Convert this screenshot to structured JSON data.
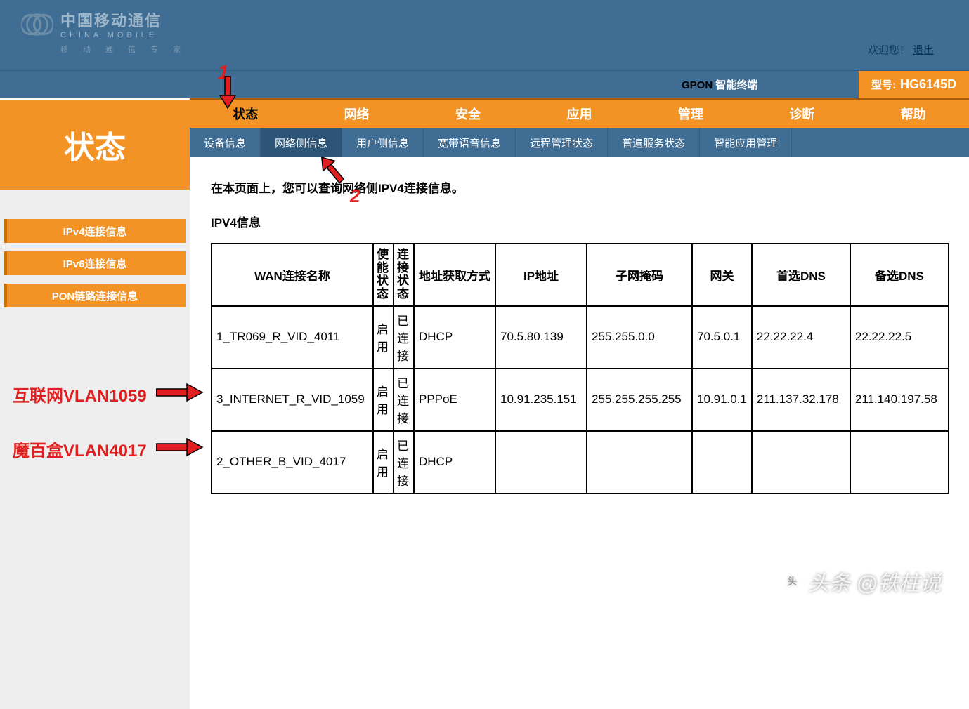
{
  "header": {
    "logo_line1": "中国移动通信",
    "logo_line2": "CHINA MOBILE",
    "logo_tagline": "移 动 通 信 专 家",
    "welcome_prefix": "欢迎您！",
    "logout": "退出",
    "gpon_label_bold": "GPON",
    "gpon_label_rest": "智能终端",
    "model_label": "型号:",
    "model_value": "HG6145D"
  },
  "sidebar": {
    "big_title": "状态",
    "items": [
      {
        "label": "IPv4连接信息",
        "active": true
      },
      {
        "label": "IPv6连接信息",
        "active": false
      },
      {
        "label": "PON链路连接信息",
        "active": false
      }
    ]
  },
  "nav_main": [
    {
      "label": "状态",
      "active": true
    },
    {
      "label": "网络",
      "active": false
    },
    {
      "label": "安全",
      "active": false
    },
    {
      "label": "应用",
      "active": false
    },
    {
      "label": "管理",
      "active": false
    },
    {
      "label": "诊断",
      "active": false
    },
    {
      "label": "帮助",
      "active": false
    }
  ],
  "nav_sub": [
    {
      "label": "设备信息",
      "active": false
    },
    {
      "label": "网络侧信息",
      "active": true
    },
    {
      "label": "用户侧信息",
      "active": false
    },
    {
      "label": "宽带语音信息",
      "active": false
    },
    {
      "label": "远程管理状态",
      "active": false
    },
    {
      "label": "普遍服务状态",
      "active": false
    },
    {
      "label": "智能应用管理",
      "active": false
    }
  ],
  "content": {
    "page_desc": "在本页面上，您可以查询网络侧IPV4连接信息。",
    "section_title": "IPV4信息",
    "table": {
      "columns": [
        "WAN连接名称",
        "使能状态",
        "连接状态",
        "地址获取方式",
        "IP地址",
        "子网掩码",
        "网关",
        "首选DNS",
        "备选DNS"
      ],
      "rows": [
        [
          "1_TR069_R_VID_4011",
          "启用",
          "已连接",
          "DHCP",
          "70.5.80.139",
          "255.255.0.0",
          "70.5.0.1",
          "22.22.22.4",
          "22.22.22.5"
        ],
        [
          "3_INTERNET_R_VID_1059",
          "启用",
          "已连接",
          "PPPoE",
          "10.91.235.151",
          "255.255.255.255",
          "10.91.0.1",
          "211.137.32.178",
          "211.140.197.58"
        ],
        [
          "2_OTHER_B_VID_4017",
          "启用",
          "已连接",
          "DHCP",
          "",
          "",
          "",
          "",
          ""
        ]
      ]
    }
  },
  "annotations": {
    "num1": "1",
    "num2": "2",
    "label_vlan1059": "互联网VLAN1059",
    "label_vlan4017": "魔百盒VLAN4017"
  },
  "watermark": "头条 @铁柱说",
  "colors": {
    "banner_bg": "#3f6d94",
    "accent_orange": "#f39325",
    "accent_orange_dark": "#c96f0d",
    "nav_sub_active": "#2d5577",
    "annotation_red": "#e02020",
    "side_bg": "#eeeeee",
    "table_border": "#000000"
  }
}
